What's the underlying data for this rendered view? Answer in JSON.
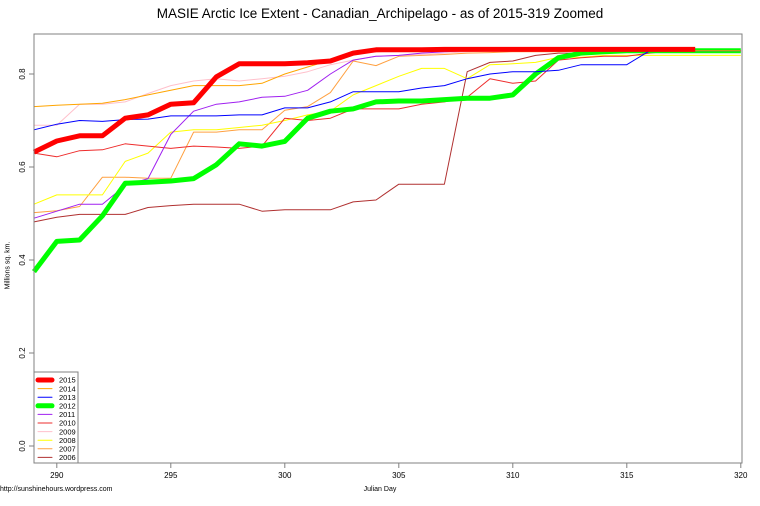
{
  "title": "MASIE Arctic Ice Extent - Canadian_Archipelago - as of 2015-319 Zoomed",
  "source": "http://sunshinehours.wordpress.com",
  "chart_data": {
    "type": "line",
    "title": "MASIE Arctic Ice Extent - Canadian_Archipelago - as of 2015-319 Zoomed",
    "xlabel": "Julian Day",
    "ylabel": "Millions sq. km.",
    "xlim": [
      289,
      320
    ],
    "ylim": [
      -0.02,
      0.88
    ],
    "xticks": [
      290,
      295,
      300,
      305,
      310,
      315,
      320
    ],
    "yticks": [
      0.0,
      0.2,
      0.4,
      0.6,
      0.8
    ],
    "ytick_labels": [
      "0.0",
      "0.2",
      "0.4",
      "0.6",
      "0.8"
    ],
    "grid": false,
    "legend_position": "bottom-left",
    "x": [
      289,
      290,
      291,
      292,
      293,
      294,
      295,
      296,
      297,
      298,
      299,
      300,
      301,
      302,
      303,
      304,
      305,
      306,
      307,
      308,
      309,
      310,
      311,
      312,
      313,
      314,
      315,
      316,
      317,
      318,
      319,
      320
    ],
    "series": [
      {
        "name": "2015",
        "color": "#ff0000",
        "width": 5,
        "values": [
          0.632,
          0.656,
          0.667,
          0.667,
          0.705,
          0.712,
          0.735,
          0.738,
          0.794,
          0.822,
          0.822,
          0.822,
          0.824,
          0.828,
          0.845,
          0.852,
          0.852,
          0.852,
          0.853,
          0.853,
          0.853,
          0.853,
          0.853,
          0.853,
          0.853,
          0.853,
          0.853,
          0.853,
          0.853,
          0.853,
          null,
          null
        ]
      },
      {
        "name": "2014",
        "color": "#ffa500",
        "width": 1,
        "values": [
          0.73,
          0.733,
          0.735,
          0.737,
          0.745,
          0.755,
          0.765,
          0.775,
          0.775,
          0.775,
          0.78,
          0.8,
          0.815,
          0.83,
          0.845,
          0.848,
          0.85,
          0.85,
          0.85,
          0.85,
          0.85,
          0.85,
          0.85,
          0.85,
          0.85,
          0.85,
          0.85,
          0.85,
          0.85,
          0.85,
          0.85,
          0.85
        ]
      },
      {
        "name": "2013",
        "color": "#0000ff",
        "width": 1,
        "values": [
          0.68,
          0.692,
          0.7,
          0.698,
          0.702,
          0.703,
          0.71,
          0.71,
          0.71,
          0.712,
          0.712,
          0.727,
          0.727,
          0.74,
          0.762,
          0.762,
          0.762,
          0.77,
          0.775,
          0.79,
          0.8,
          0.805,
          0.805,
          0.808,
          0.82,
          0.82,
          0.82,
          0.85,
          0.85,
          0.85,
          0.85,
          0.85
        ]
      },
      {
        "name": "2012",
        "color": "#00ff00",
        "width": 5,
        "values": [
          0.375,
          0.44,
          0.443,
          0.495,
          0.565,
          0.567,
          0.57,
          0.575,
          0.605,
          0.65,
          0.645,
          0.655,
          0.705,
          0.72,
          0.725,
          0.74,
          0.742,
          0.742,
          0.745,
          0.748,
          0.748,
          0.755,
          0.8,
          0.835,
          0.845,
          0.848,
          0.85,
          0.85,
          0.85,
          0.85,
          0.85,
          0.85
        ]
      },
      {
        "name": "2011",
        "color": "#a020f0",
        "width": 1,
        "values": [
          0.49,
          0.505,
          0.52,
          0.52,
          0.56,
          0.575,
          0.67,
          0.72,
          0.735,
          0.74,
          0.75,
          0.752,
          0.765,
          0.8,
          0.83,
          0.838,
          0.84,
          0.845,
          0.848,
          0.85,
          0.85,
          0.85,
          0.85,
          0.85,
          0.85,
          0.85,
          0.85,
          0.85,
          0.85,
          0.85,
          0.85,
          0.85
        ]
      },
      {
        "name": "2010",
        "color": "#ee2c2c",
        "width": 1,
        "values": [
          0.63,
          0.622,
          0.635,
          0.637,
          0.65,
          0.645,
          0.64,
          0.645,
          0.643,
          0.64,
          0.645,
          0.705,
          0.7,
          0.705,
          0.725,
          0.725,
          0.725,
          0.735,
          0.74,
          0.75,
          0.79,
          0.78,
          0.785,
          0.83,
          0.835,
          0.838,
          0.838,
          0.845,
          0.85,
          0.85,
          0.85,
          0.85
        ]
      },
      {
        "name": "2009",
        "color": "#ffc0cb",
        "width": 1,
        "values": [
          0.69,
          0.69,
          0.735,
          0.735,
          0.74,
          0.758,
          0.775,
          0.785,
          0.79,
          0.785,
          0.79,
          0.795,
          0.805,
          0.82,
          0.83,
          0.838,
          0.84,
          0.842,
          0.845,
          0.848,
          0.85,
          0.85,
          0.85,
          0.85,
          0.85,
          0.85,
          0.85,
          0.85,
          0.85,
          0.85,
          0.85,
          0.85
        ]
      },
      {
        "name": "2008",
        "color": "#ffff00",
        "width": 1,
        "values": [
          0.52,
          0.54,
          0.54,
          0.54,
          0.612,
          0.63,
          0.675,
          0.68,
          0.68,
          0.685,
          0.69,
          0.7,
          0.712,
          0.72,
          0.755,
          0.775,
          0.795,
          0.812,
          0.812,
          0.79,
          0.82,
          0.822,
          0.825,
          0.836,
          0.836,
          0.84,
          0.84,
          0.84,
          0.84,
          0.84,
          0.84,
          0.84
        ]
      },
      {
        "name": "2007",
        "color": "#ffa040",
        "width": 1,
        "values": [
          0.502,
          0.506,
          0.515,
          0.578,
          0.578,
          0.576,
          0.576,
          0.675,
          0.675,
          0.68,
          0.68,
          0.722,
          0.73,
          0.76,
          0.828,
          0.818,
          0.838,
          0.84,
          0.842,
          0.845,
          0.846,
          0.848,
          0.848,
          0.848,
          0.85,
          0.85,
          0.85,
          0.85,
          0.85,
          0.85,
          0.85,
          0.85
        ]
      },
      {
        "name": "2006",
        "color": "#b03030",
        "width": 1,
        "values": [
          0.482,
          0.492,
          0.498,
          0.498,
          0.498,
          0.513,
          0.517,
          0.52,
          0.52,
          0.52,
          0.505,
          0.508,
          0.508,
          0.508,
          0.525,
          0.529,
          0.563,
          0.563,
          0.563,
          0.805,
          0.825,
          0.828,
          0.84,
          0.845,
          0.845,
          0.848,
          0.85,
          0.85,
          0.85,
          0.85,
          0.85,
          0.85
        ]
      }
    ]
  }
}
